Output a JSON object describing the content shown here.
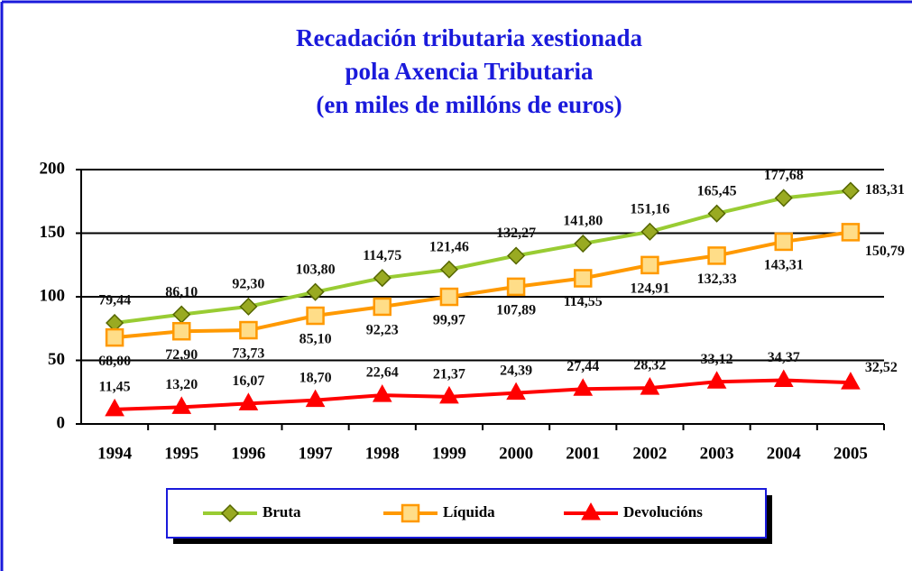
{
  "chart_data": {
    "type": "line",
    "title": [
      "Recadación tributaria xestionada",
      "pola Axencia Tributaria",
      "(en miles de millóns de euros)"
    ],
    "categories": [
      "1994",
      "1995",
      "1996",
      "1997",
      "1998",
      "1999",
      "2000",
      "2001",
      "2002",
      "2003",
      "2004",
      "2005"
    ],
    "series": [
      {
        "name": "Bruta",
        "color": "#99cc33",
        "marker": "diamond",
        "values": [
          79.44,
          86.1,
          92.3,
          103.8,
          114.75,
          121.46,
          132.27,
          141.8,
          151.16,
          165.45,
          177.68,
          183.31
        ],
        "value_labels": [
          "79,44",
          "86,10",
          "92,30",
          "103,80",
          "114,75",
          "121,46",
          "132,27",
          "141,80",
          "151,16",
          "165,45",
          "177,68",
          "183,31"
        ]
      },
      {
        "name": "Líquida",
        "color": "#ff9900",
        "marker": "square",
        "values": [
          68.0,
          72.9,
          73.73,
          85.1,
          92.23,
          99.97,
          107.89,
          114.55,
          124.91,
          132.33,
          143.31,
          150.79
        ],
        "value_labels": [
          "68,00",
          "72,90",
          "73,73",
          "85,10",
          "92,23",
          "99,97",
          "107,89",
          "114,55",
          "124,91",
          "132,33",
          "143,31",
          "150,79"
        ]
      },
      {
        "name": "Devolucións",
        "color": "#ff0000",
        "marker": "triangle",
        "values": [
          11.45,
          13.2,
          16.07,
          18.7,
          22.64,
          21.37,
          24.39,
          27.44,
          28.32,
          33.12,
          34.37,
          32.52
        ],
        "value_labels": [
          "11,45",
          "13,20",
          "16,07",
          "18,70",
          "22,64",
          "21,37",
          "24,39",
          "27,44",
          "28,32",
          "33,12",
          "34,37",
          "32,52"
        ]
      }
    ],
    "ylim": [
      0,
      200
    ],
    "yticks": [
      0,
      50,
      100,
      150,
      200
    ],
    "grid": true
  }
}
